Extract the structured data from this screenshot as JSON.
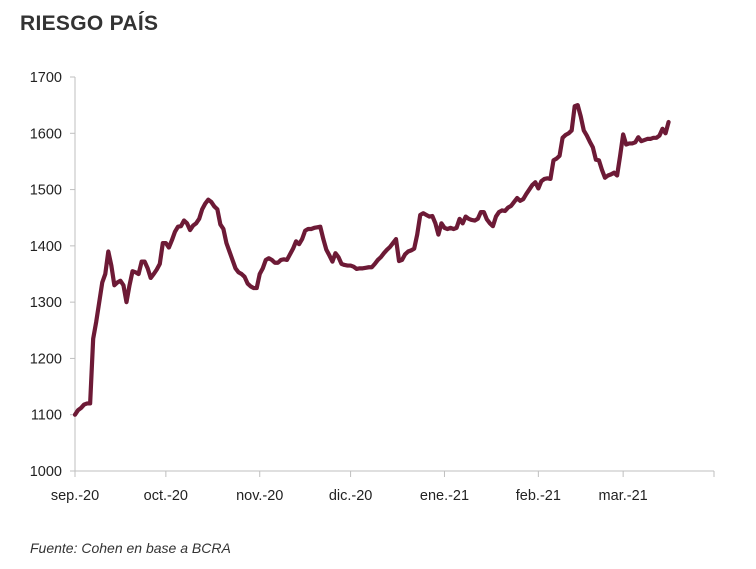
{
  "title": "RIESGO PAÍS",
  "source": "Fuente: Cohen en base a BCRA",
  "colors": {
    "line": "#6d1a36",
    "axis": "#bfbfbf"
  },
  "chart_data": {
    "type": "line",
    "title": "RIESGO PAÍS",
    "xlabel": "",
    "ylabel": "",
    "ylim": [
      1000,
      1700
    ],
    "yticks": [
      1000,
      1100,
      1200,
      1300,
      1400,
      1500,
      1600,
      1700
    ],
    "x_start": "2020-09-01",
    "x_end": "2021-03-31",
    "xtick_labels": [
      {
        "label": "sep.-20",
        "date": "2020-09-01"
      },
      {
        "label": "oct.-20",
        "date": "2020-10-01"
      },
      {
        "label": "nov.-20",
        "date": "2020-11-01"
      },
      {
        "label": "dic.-20",
        "date": "2020-12-01"
      },
      {
        "label": "ene.-21",
        "date": "2021-01-01"
      },
      {
        "label": "feb.-21",
        "date": "2021-02-01"
      },
      {
        "label": "mar.-21",
        "date": "2021-03-01"
      }
    ],
    "grid": false,
    "series": [
      {
        "points": [
          [
            "2020-09-01",
            1100
          ],
          [
            "2020-09-02",
            1108
          ],
          [
            "2020-09-03",
            1112
          ],
          [
            "2020-09-04",
            1118
          ],
          [
            "2020-09-05",
            1120
          ],
          [
            "2020-09-06",
            1120
          ],
          [
            "2020-09-07",
            1235
          ],
          [
            "2020-09-08",
            1265
          ],
          [
            "2020-09-09",
            1300
          ],
          [
            "2020-09-10",
            1335
          ],
          [
            "2020-09-11",
            1350
          ],
          [
            "2020-09-12",
            1390
          ],
          [
            "2020-09-13",
            1365
          ],
          [
            "2020-09-14",
            1330
          ],
          [
            "2020-09-15",
            1335
          ],
          [
            "2020-09-16",
            1338
          ],
          [
            "2020-09-17",
            1330
          ],
          [
            "2020-09-18",
            1300
          ],
          [
            "2020-09-19",
            1330
          ],
          [
            "2020-09-20",
            1355
          ],
          [
            "2020-09-21",
            1353
          ],
          [
            "2020-09-22",
            1350
          ],
          [
            "2020-09-23",
            1372
          ],
          [
            "2020-09-24",
            1372
          ],
          [
            "2020-09-25",
            1360
          ],
          [
            "2020-09-26",
            1343
          ],
          [
            "2020-09-27",
            1350
          ],
          [
            "2020-09-28",
            1358
          ],
          [
            "2020-09-29",
            1368
          ],
          [
            "2020-09-30",
            1405
          ],
          [
            "2020-10-01",
            1405
          ],
          [
            "2020-10-02",
            1397
          ],
          [
            "2020-10-03",
            1410
          ],
          [
            "2020-10-04",
            1425
          ],
          [
            "2020-10-05",
            1434
          ],
          [
            "2020-10-06",
            1435
          ],
          [
            "2020-10-07",
            1445
          ],
          [
            "2020-10-08",
            1440
          ],
          [
            "2020-10-09",
            1428
          ],
          [
            "2020-10-10",
            1436
          ],
          [
            "2020-10-11",
            1440
          ],
          [
            "2020-10-12",
            1448
          ],
          [
            "2020-10-13",
            1465
          ],
          [
            "2020-10-14",
            1475
          ],
          [
            "2020-10-15",
            1482
          ],
          [
            "2020-10-16",
            1478
          ],
          [
            "2020-10-17",
            1470
          ],
          [
            "2020-10-18",
            1465
          ],
          [
            "2020-10-19",
            1438
          ],
          [
            "2020-10-20",
            1430
          ],
          [
            "2020-10-21",
            1405
          ],
          [
            "2020-10-22",
            1390
          ],
          [
            "2020-10-23",
            1375
          ],
          [
            "2020-10-24",
            1360
          ],
          [
            "2020-10-25",
            1353
          ],
          [
            "2020-10-26",
            1350
          ],
          [
            "2020-10-27",
            1345
          ],
          [
            "2020-10-28",
            1333
          ],
          [
            "2020-10-29",
            1328
          ],
          [
            "2020-10-30",
            1325
          ],
          [
            "2020-10-31",
            1325
          ],
          [
            "2020-11-01",
            1350
          ],
          [
            "2020-11-02",
            1360
          ],
          [
            "2020-11-03",
            1375
          ],
          [
            "2020-11-04",
            1378
          ],
          [
            "2020-11-05",
            1375
          ],
          [
            "2020-11-06",
            1370
          ],
          [
            "2020-11-07",
            1370
          ],
          [
            "2020-11-08",
            1375
          ],
          [
            "2020-11-09",
            1376
          ],
          [
            "2020-11-10",
            1375
          ],
          [
            "2020-11-11",
            1385
          ],
          [
            "2020-11-12",
            1395
          ],
          [
            "2020-11-13",
            1408
          ],
          [
            "2020-11-14",
            1403
          ],
          [
            "2020-11-15",
            1412
          ],
          [
            "2020-11-16",
            1427
          ],
          [
            "2020-11-17",
            1430
          ],
          [
            "2020-11-18",
            1430
          ],
          [
            "2020-11-19",
            1432
          ],
          [
            "2020-11-20",
            1433
          ],
          [
            "2020-11-21",
            1434
          ],
          [
            "2020-11-22",
            1412
          ],
          [
            "2020-11-23",
            1393
          ],
          [
            "2020-11-24",
            1383
          ],
          [
            "2020-11-25",
            1372
          ],
          [
            "2020-11-26",
            1387
          ],
          [
            "2020-11-27",
            1380
          ],
          [
            "2020-11-28",
            1368
          ],
          [
            "2020-11-29",
            1366
          ],
          [
            "2020-11-30",
            1365
          ],
          [
            "2020-12-01",
            1365
          ],
          [
            "2020-12-02",
            1363
          ],
          [
            "2020-12-03",
            1359
          ],
          [
            "2020-12-04",
            1360
          ],
          [
            "2020-12-05",
            1360
          ],
          [
            "2020-12-06",
            1361
          ],
          [
            "2020-12-07",
            1362
          ],
          [
            "2020-12-08",
            1362
          ],
          [
            "2020-12-09",
            1368
          ],
          [
            "2020-12-10",
            1375
          ],
          [
            "2020-12-11",
            1380
          ],
          [
            "2020-12-12",
            1387
          ],
          [
            "2020-12-13",
            1393
          ],
          [
            "2020-12-14",
            1398
          ],
          [
            "2020-12-15",
            1405
          ],
          [
            "2020-12-16",
            1412
          ],
          [
            "2020-12-17",
            1373
          ],
          [
            "2020-12-18",
            1375
          ],
          [
            "2020-12-19",
            1385
          ],
          [
            "2020-12-20",
            1390
          ],
          [
            "2020-12-21",
            1392
          ],
          [
            "2020-12-22",
            1395
          ],
          [
            "2020-12-23",
            1420
          ],
          [
            "2020-12-24",
            1455
          ],
          [
            "2020-12-25",
            1458
          ],
          [
            "2020-12-26",
            1455
          ],
          [
            "2020-12-27",
            1452
          ],
          [
            "2020-12-28",
            1453
          ],
          [
            "2020-12-29",
            1440
          ],
          [
            "2020-12-30",
            1420
          ],
          [
            "2020-12-31",
            1440
          ],
          [
            "2021-01-01",
            1432
          ],
          [
            "2021-01-02",
            1430
          ],
          [
            "2021-01-03",
            1432
          ],
          [
            "2021-01-04",
            1430
          ],
          [
            "2021-01-05",
            1432
          ],
          [
            "2021-01-06",
            1448
          ],
          [
            "2021-01-07",
            1440
          ],
          [
            "2021-01-08",
            1452
          ],
          [
            "2021-01-09",
            1448
          ],
          [
            "2021-01-10",
            1446
          ],
          [
            "2021-01-11",
            1445
          ],
          [
            "2021-01-12",
            1448
          ],
          [
            "2021-01-13",
            1460
          ],
          [
            "2021-01-14",
            1460
          ],
          [
            "2021-01-15",
            1447
          ],
          [
            "2021-01-16",
            1440
          ],
          [
            "2021-01-17",
            1435
          ],
          [
            "2021-01-18",
            1452
          ],
          [
            "2021-01-19",
            1460
          ],
          [
            "2021-01-20",
            1463
          ],
          [
            "2021-01-21",
            1462
          ],
          [
            "2021-01-22",
            1468
          ],
          [
            "2021-01-23",
            1471
          ],
          [
            "2021-01-24",
            1478
          ],
          [
            "2021-01-25",
            1485
          ],
          [
            "2021-01-26",
            1480
          ],
          [
            "2021-01-27",
            1483
          ],
          [
            "2021-01-28",
            1492
          ],
          [
            "2021-01-29",
            1500
          ],
          [
            "2021-01-30",
            1508
          ],
          [
            "2021-01-31",
            1513
          ],
          [
            "2021-02-01",
            1502
          ],
          [
            "2021-02-02",
            1515
          ],
          [
            "2021-02-03",
            1519
          ],
          [
            "2021-02-04",
            1520
          ],
          [
            "2021-02-05",
            1519
          ],
          [
            "2021-02-06",
            1552
          ],
          [
            "2021-02-07",
            1555
          ],
          [
            "2021-02-08",
            1560
          ],
          [
            "2021-02-09",
            1592
          ],
          [
            "2021-02-10",
            1597
          ],
          [
            "2021-02-11",
            1600
          ],
          [
            "2021-02-12",
            1605
          ],
          [
            "2021-02-13",
            1648
          ],
          [
            "2021-02-14",
            1650
          ],
          [
            "2021-02-15",
            1630
          ],
          [
            "2021-02-16",
            1605
          ],
          [
            "2021-02-17",
            1596
          ],
          [
            "2021-02-18",
            1585
          ],
          [
            "2021-02-19",
            1575
          ],
          [
            "2021-02-20",
            1553
          ],
          [
            "2021-02-21",
            1552
          ],
          [
            "2021-02-22",
            1535
          ],
          [
            "2021-02-23",
            1521
          ],
          [
            "2021-02-24",
            1525
          ],
          [
            "2021-02-25",
            1527
          ],
          [
            "2021-02-26",
            1530
          ],
          [
            "2021-02-27",
            1525
          ],
          [
            "2021-02-28",
            1560
          ],
          [
            "2021-03-01",
            1598
          ],
          [
            "2021-03-02",
            1580
          ],
          [
            "2021-03-03",
            1582
          ],
          [
            "2021-03-04",
            1582
          ],
          [
            "2021-03-05",
            1584
          ],
          [
            "2021-03-06",
            1593
          ],
          [
            "2021-03-07",
            1586
          ],
          [
            "2021-03-08",
            1588
          ],
          [
            "2021-03-09",
            1590
          ],
          [
            "2021-03-10",
            1590
          ],
          [
            "2021-03-11",
            1592
          ],
          [
            "2021-03-12",
            1592
          ],
          [
            "2021-03-13",
            1596
          ],
          [
            "2021-03-14",
            1608
          ],
          [
            "2021-03-15",
            1600
          ],
          [
            "2021-03-16",
            1620
          ]
        ]
      }
    ]
  }
}
